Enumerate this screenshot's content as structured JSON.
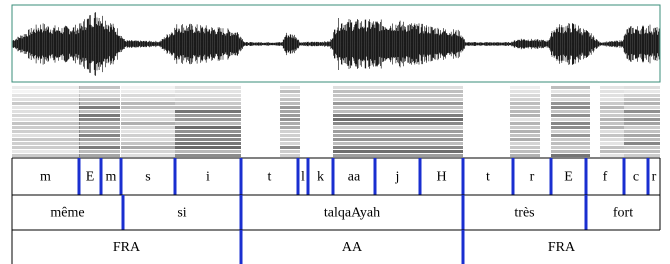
{
  "tiers": [
    {
      "labels": [
        "m",
        "E",
        "m",
        "s",
        "i",
        "t",
        "l",
        "k",
        "aa",
        "j",
        "H",
        "t",
        "r",
        "E",
        "f",
        "c",
        "r"
      ]
    },
    {
      "labels": [
        "même",
        "si",
        "talqaAyah",
        "très",
        "fort"
      ]
    },
    {
      "labels": [
        "FRA",
        "AA",
        "FRA"
      ]
    }
  ]
}
